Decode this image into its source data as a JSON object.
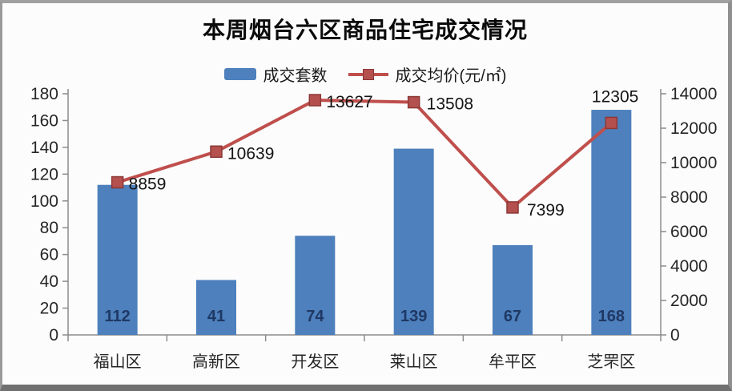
{
  "page": {
    "title": "本周烟台六区商品住宅成交情况"
  },
  "legend": {
    "items": [
      {
        "label": "成交套数",
        "swatch": "bar",
        "color": "#4d80bd"
      },
      {
        "label": "成交均价(元/㎡)",
        "swatch": "line-marker",
        "color": "#bf4f4c",
        "marker_color": "#b4504e"
      }
    ]
  },
  "chart_data": {
    "type": "bar",
    "subtype": "combo-bar-line-dual-axis",
    "title": "本周烟台六区商品住宅成交情况",
    "categories": [
      "福山区",
      "高新区",
      "开发区",
      "莱山区",
      "牟平区",
      "芝罘区"
    ],
    "series": [
      {
        "name": "成交套数",
        "type": "bar",
        "axis": "left",
        "color": "#4d80bd",
        "values": [
          112,
          41,
          74,
          139,
          67,
          168
        ],
        "data_labels": true
      },
      {
        "name": "成交均价(元/㎡)",
        "type": "line",
        "axis": "right",
        "color": "#bf4f4c",
        "marker": "square",
        "marker_color": "#b4504e",
        "marker_border_color": "#8c3836",
        "values": [
          8859,
          10639,
          13627,
          13508,
          7399,
          12305
        ],
        "data_labels": true
      }
    ],
    "left_axis": {
      "min": 0,
      "max": 180,
      "step": 20,
      "ticks": [
        0,
        20,
        40,
        60,
        80,
        100,
        120,
        140,
        160,
        180
      ]
    },
    "right_axis": {
      "min": 0,
      "max": 14000,
      "step": 2000,
      "ticks": [
        0,
        2000,
        4000,
        6000,
        8000,
        10000,
        12000,
        14000
      ]
    },
    "grid": false,
    "legend_position": "top",
    "xlabel": "",
    "ylabel": ""
  }
}
